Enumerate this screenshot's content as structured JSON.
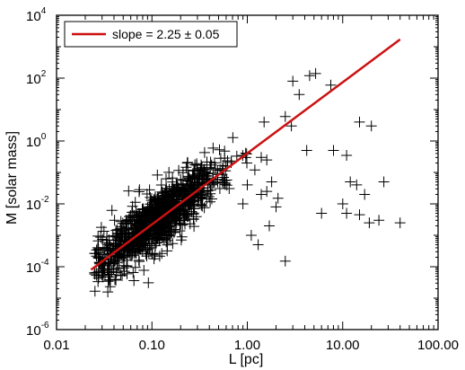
{
  "chart_data": {
    "type": "scatter",
    "xlabel": "L [pc]",
    "ylabel": "M [solar mass]",
    "x_scale": "log",
    "y_scale": "log",
    "xlim": [
      0.01,
      100
    ],
    "ylim": [
      1e-06,
      10000
    ],
    "x_ticks": [
      {
        "value": 0.01,
        "label": "0.01"
      },
      {
        "value": 0.1,
        "label": "0.10"
      },
      {
        "value": 1,
        "label": "1.00"
      },
      {
        "value": 10,
        "label": "10.00"
      },
      {
        "value": 100,
        "label": "100.00"
      }
    ],
    "y_ticks": [
      {
        "value": 1e-06,
        "base": "10",
        "exp": "-6"
      },
      {
        "value": 0.0001,
        "base": "10",
        "exp": "-4"
      },
      {
        "value": 0.01,
        "base": "10",
        "exp": "-2"
      },
      {
        "value": 1,
        "base": "10",
        "exp": "0"
      },
      {
        "value": 100,
        "base": "10",
        "exp": "2"
      },
      {
        "value": 10000,
        "base": "10",
        "exp": "4"
      }
    ],
    "fit_line": {
      "label": "slope = 2.25 ± 0.05",
      "color": "#cc1111",
      "x": [
        0.023,
        40
      ],
      "y": [
        8e-05,
        1700
      ]
    },
    "marker": "plus",
    "marker_color": "#000000",
    "legend_position": "top-left",
    "outlier_points": [
      {
        "x": 4.5,
        "y": 120
      },
      {
        "x": 5.2,
        "y": 140
      },
      {
        "x": 3.0,
        "y": 80
      },
      {
        "x": 3.5,
        "y": 30
      },
      {
        "x": 7.5,
        "y": 60
      },
      {
        "x": 2.5,
        "y": 6
      },
      {
        "x": 1.5,
        "y": 4
      },
      {
        "x": 2.9,
        "y": 3
      },
      {
        "x": 15,
        "y": 4
      },
      {
        "x": 20,
        "y": 3
      },
      {
        "x": 8,
        "y": 0.5
      },
      {
        "x": 11,
        "y": 0.35
      },
      {
        "x": 12,
        "y": 0.05
      },
      {
        "x": 14,
        "y": 0.04
      },
      {
        "x": 27,
        "y": 0.05
      },
      {
        "x": 17,
        "y": 0.02
      },
      {
        "x": 10,
        "y": 0.01
      },
      {
        "x": 6,
        "y": 0.005
      },
      {
        "x": 11,
        "y": 0.005
      },
      {
        "x": 15,
        "y": 0.0045
      },
      {
        "x": 19,
        "y": 0.0025
      },
      {
        "x": 24,
        "y": 0.003
      },
      {
        "x": 40,
        "y": 0.0025
      },
      {
        "x": 2.5,
        "y": 0.00015
      },
      {
        "x": 1.3,
        "y": 0.0005
      },
      {
        "x": 1.1,
        "y": 0.001
      },
      {
        "x": 1.7,
        "y": 0.002
      },
      {
        "x": 1.4,
        "y": 0.3
      },
      {
        "x": 1.8,
        "y": 0.05
      },
      {
        "x": 1.6,
        "y": 0.025
      },
      {
        "x": 2.1,
        "y": 0.015
      },
      {
        "x": 2.0,
        "y": 0.008
      },
      {
        "x": 4.2,
        "y": 0.5
      },
      {
        "x": 1.6,
        "y": 0.25
      },
      {
        "x": 1.0,
        "y": 0.04
      },
      {
        "x": 1.2,
        "y": 0.12
      },
      {
        "x": 1.4,
        "y": 0.02
      },
      {
        "x": 0.9,
        "y": 0.01
      }
    ],
    "cluster": {
      "fit_slope": 2.25,
      "fit_x0": 0.023,
      "fit_y0": 8e-05,
      "x_range": [
        0.025,
        1.0
      ],
      "scatter_decades": 0.45,
      "count": 1150
    }
  }
}
